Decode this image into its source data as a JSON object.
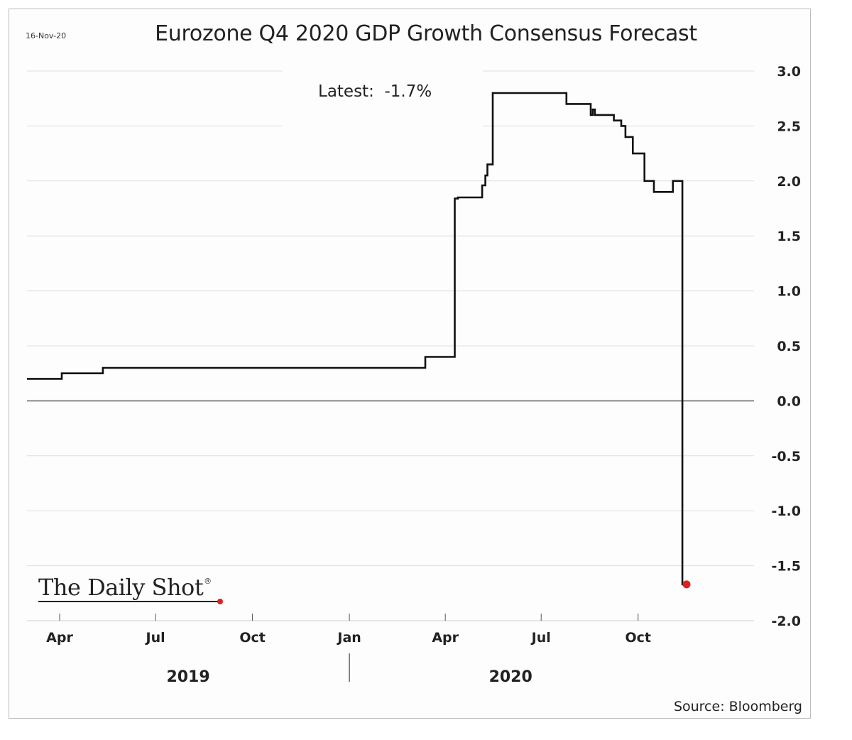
{
  "chart_data": {
    "type": "line",
    "title": "Eurozone Q4 2020 GDP Growth Consensus Forecast",
    "date": "16-Nov-20",
    "annotation": "Latest:  -1.7%",
    "source": "Source: Bloomberg",
    "brand": "The Daily Shot",
    "brand_mark": "®",
    "xlabel": "",
    "ylabel": "",
    "x_range": [
      0,
      690
    ],
    "ylim": [
      -2.0,
      3.0
    ],
    "y_ticks": [
      {
        "value": 3.0,
        "label": "3.0"
      },
      {
        "value": 2.5,
        "label": "2.5"
      },
      {
        "value": 2.0,
        "label": "2.0"
      },
      {
        "value": 1.5,
        "label": "1.5"
      },
      {
        "value": 1.0,
        "label": "1.0"
      },
      {
        "value": 0.5,
        "label": "0.5"
      },
      {
        "value": 0.0,
        "label": "0.0"
      },
      {
        "value": -0.5,
        "label": "-0.5"
      },
      {
        "value": -1.0,
        "label": "-1.0"
      },
      {
        "value": -1.5,
        "label": "-1.5"
      },
      {
        "value": -2.0,
        "label": "-2.0"
      }
    ],
    "x_ticks": [
      {
        "day": 31,
        "label": "Apr"
      },
      {
        "day": 122,
        "label": "Jul"
      },
      {
        "day": 214,
        "label": "Oct"
      },
      {
        "day": 306,
        "label": "Jan"
      },
      {
        "day": 397,
        "label": "Apr"
      },
      {
        "day": 488,
        "label": "Jul"
      },
      {
        "day": 580,
        "label": "Oct"
      }
    ],
    "years": [
      {
        "day": 153,
        "label": "2019"
      },
      {
        "day": 459,
        "label": "2020"
      }
    ],
    "year_divider_day": 306,
    "series": [
      {
        "name": "Eurozone Q4 2020 GDP Growth Consensus Forecast",
        "x": [
          0,
          33,
          33,
          72,
          72,
          378,
          378,
          406,
          406,
          409,
          409,
          432,
          432,
          435,
          435,
          437,
          437,
          442,
          442,
          446,
          446,
          512,
          512,
          535,
          535,
          537,
          537,
          539,
          539,
          557,
          557,
          564,
          564,
          568,
          568,
          575,
          575,
          586,
          586,
          595,
          595,
          613,
          613,
          616,
          616,
          622,
          622,
          626
        ],
        "values": [
          0.2,
          0.2,
          0.25,
          0.25,
          0.3,
          0.3,
          0.4,
          0.4,
          1.84,
          1.84,
          1.85,
          1.85,
          1.96,
          1.96,
          2.05,
          2.05,
          2.15,
          2.15,
          2.8,
          2.8,
          2.8,
          2.8,
          2.7,
          2.7,
          2.6,
          2.6,
          2.65,
          2.65,
          2.6,
          2.6,
          2.55,
          2.55,
          2.5,
          2.5,
          2.4,
          2.4,
          2.25,
          2.25,
          2.0,
          2.0,
          1.9,
          1.9,
          2.0,
          2.0,
          2.0,
          2.0,
          -1.67,
          -1.67
        ]
      }
    ],
    "latest_point": {
      "x": 626,
      "y": -1.67
    },
    "colors": {
      "line": "#111111",
      "marker": "#e0201f",
      "grid": "#dedede",
      "zero_line": "#888888"
    }
  }
}
